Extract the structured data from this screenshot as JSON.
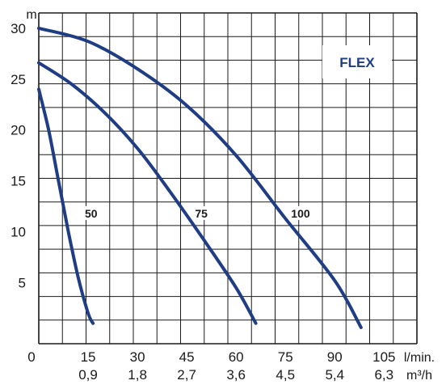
{
  "chart_data": {
    "type": "line",
    "title": "",
    "badge": "FLEX",
    "y_unit": "m",
    "x_units": [
      "l/min.",
      "m³/h"
    ],
    "x_ticks": [
      "0",
      "15",
      "30",
      "45",
      "60",
      "75",
      "90",
      "105"
    ],
    "x_ticks_secondary": [
      "",
      "0,9",
      "1,8",
      "2,7",
      "3,6",
      "4,5",
      "5,4",
      "6,3"
    ],
    "y_ticks": [
      "5",
      "10",
      "15",
      "20",
      "25",
      "30"
    ],
    "xlim": [
      0,
      115
    ],
    "ylim": [
      -1,
      31.5
    ],
    "grid": true,
    "curve_color": "#1f3d84",
    "series": [
      {
        "name": "50",
        "x": [
          0,
          3,
          6,
          9,
          12,
          15,
          16.5
        ],
        "y": [
          24,
          20,
          15,
          10,
          5.5,
          2,
          1
        ],
        "label_at": [
          14,
          11.8
        ]
      },
      {
        "name": "75",
        "x": [
          0,
          10,
          20,
          30,
          40,
          50,
          60,
          66
        ],
        "y": [
          26.6,
          24.5,
          21.7,
          18.2,
          13.9,
          9.3,
          4.5,
          1
        ]
      },
      {
        "name": "100",
        "x": [
          0,
          15,
          30,
          45,
          60,
          75,
          90,
          98
        ],
        "y": [
          30,
          28.7,
          26,
          22.4,
          17.5,
          11.3,
          5.2,
          0.6
        ]
      }
    ]
  }
}
